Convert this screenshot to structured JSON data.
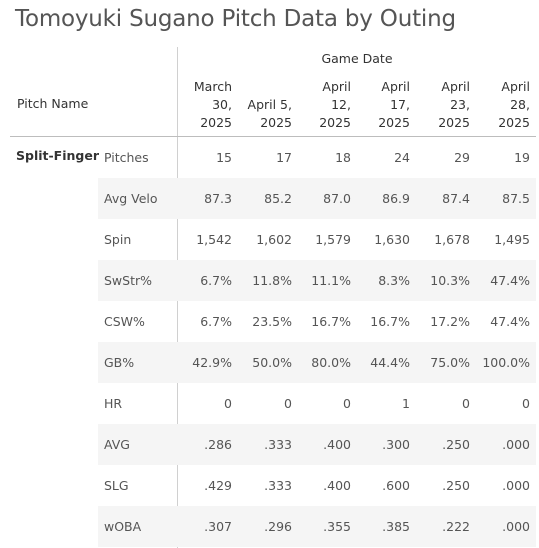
{
  "title": "Tomoyuki Sugano Pitch Data by Outing",
  "column_group_header": "Game Date",
  "row_header": "Pitch Name",
  "pitch_name": "Split-Finger",
  "dates": [
    [
      "March",
      "30,",
      "2025"
    ],
    [
      "April 5,",
      "2025"
    ],
    [
      "April",
      "12,",
      "2025"
    ],
    [
      "April",
      "17,",
      "2025"
    ],
    [
      "April",
      "23,",
      "2025"
    ],
    [
      "April",
      "28,",
      "2025"
    ]
  ],
  "rows": [
    {
      "metric": "Pitches",
      "values": [
        "15",
        "17",
        "18",
        "24",
        "29",
        "19"
      ]
    },
    {
      "metric": "Avg Velo",
      "values": [
        "87.3",
        "85.2",
        "87.0",
        "86.9",
        "87.4",
        "87.5"
      ]
    },
    {
      "metric": "Spin",
      "values": [
        "1,542",
        "1,602",
        "1,579",
        "1,630",
        "1,678",
        "1,495"
      ]
    },
    {
      "metric": "SwStr%",
      "values": [
        "6.7%",
        "11.8%",
        "11.1%",
        "8.3%",
        "10.3%",
        "47.4%"
      ]
    },
    {
      "metric": "CSW%",
      "values": [
        "6.7%",
        "23.5%",
        "16.7%",
        "16.7%",
        "17.2%",
        "47.4%"
      ]
    },
    {
      "metric": "GB%",
      "values": [
        "42.9%",
        "50.0%",
        "80.0%",
        "44.4%",
        "75.0%",
        "100.0%"
      ]
    },
    {
      "metric": "HR",
      "values": [
        "0",
        "0",
        "0",
        "1",
        "0",
        "0"
      ]
    },
    {
      "metric": "AVG",
      "values": [
        ".286",
        ".333",
        ".400",
        ".300",
        ".250",
        ".000"
      ]
    },
    {
      "metric": "SLG",
      "values": [
        ".429",
        ".333",
        ".400",
        ".600",
        ".250",
        ".000"
      ]
    },
    {
      "metric": "wOBA",
      "values": [
        ".307",
        ".296",
        ".355",
        ".385",
        ".222",
        ".000"
      ]
    }
  ]
}
